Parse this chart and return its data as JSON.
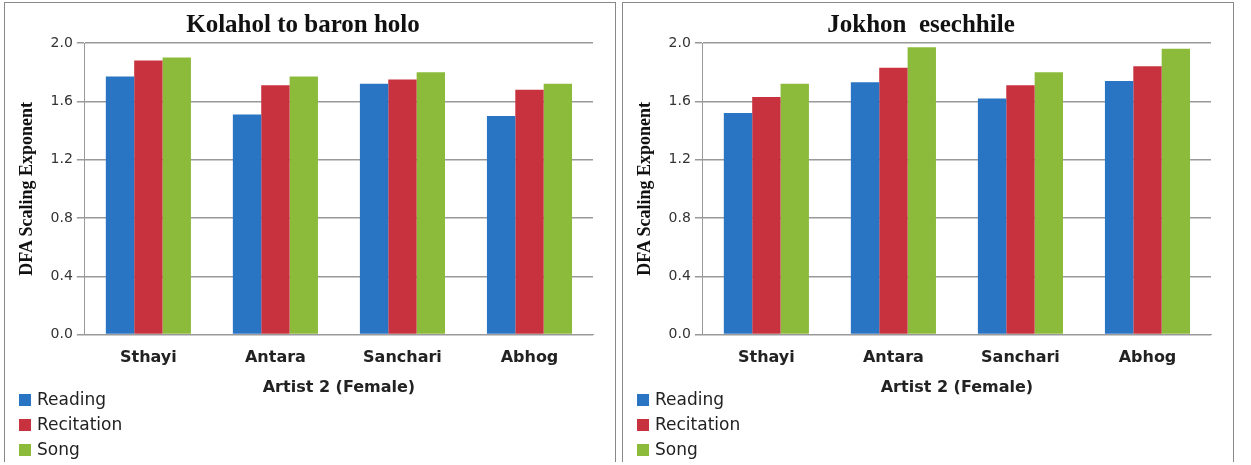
{
  "chart_data": [
    {
      "type": "bar",
      "title": "Kolahol to baron holo",
      "xlabel": "Artist 2 (Female)",
      "ylabel": "DFA Scaling Exponent",
      "categories": [
        "Sthayi",
        "Antara",
        "Sanchari",
        "Abhog"
      ],
      "series": [
        {
          "name": "Reading",
          "color": "#2a74c4",
          "values": [
            1.77,
            1.51,
            1.72,
            1.5
          ]
        },
        {
          "name": "Recitation",
          "color": "#c8323e",
          "values": [
            1.88,
            1.71,
            1.75,
            1.68
          ]
        },
        {
          "name": "Song",
          "color": "#8cbb3c",
          "values": [
            1.9,
            1.77,
            1.8,
            1.72
          ]
        }
      ],
      "ylim": [
        0,
        2
      ],
      "yticks": [
        {
          "value": 0,
          "label": "0.0"
        },
        {
          "value": 0.4,
          "label": "0.4"
        },
        {
          "value": 0.8,
          "label": "0.8"
        },
        {
          "value": 1.2,
          "label": "1.2"
        },
        {
          "value": 1.6,
          "label": "1.6"
        },
        {
          "value": 2,
          "label": "2.0"
        }
      ],
      "grid": "y",
      "legend": "bottom left"
    },
    {
      "type": "bar",
      "title": "Jokhon  esechhile",
      "xlabel": "Artist 2 (Female)",
      "ylabel": "DFA Scaling Exponent",
      "categories": [
        "Sthayi",
        "Antara",
        "Sanchari",
        "Abhog"
      ],
      "series": [
        {
          "name": "Reading",
          "color": "#2a74c4",
          "values": [
            1.52,
            1.73,
            1.62,
            1.74
          ]
        },
        {
          "name": "Recitation",
          "color": "#c8323e",
          "values": [
            1.63,
            1.83,
            1.71,
            1.84
          ]
        },
        {
          "name": "Song",
          "color": "#8cbb3c",
          "values": [
            1.72,
            1.97,
            1.8,
            1.96
          ]
        }
      ],
      "ylim": [
        0,
        2
      ],
      "yticks": [
        {
          "value": 0,
          "label": "0.0"
        },
        {
          "value": 0.4,
          "label": "0.4"
        },
        {
          "value": 0.8,
          "label": "0.8"
        },
        {
          "value": 1.2,
          "label": "1.2"
        },
        {
          "value": 1.6,
          "label": "1.6"
        },
        {
          "value": 2,
          "label": "2.0"
        }
      ],
      "grid": "y",
      "legend": "bottom left"
    }
  ]
}
